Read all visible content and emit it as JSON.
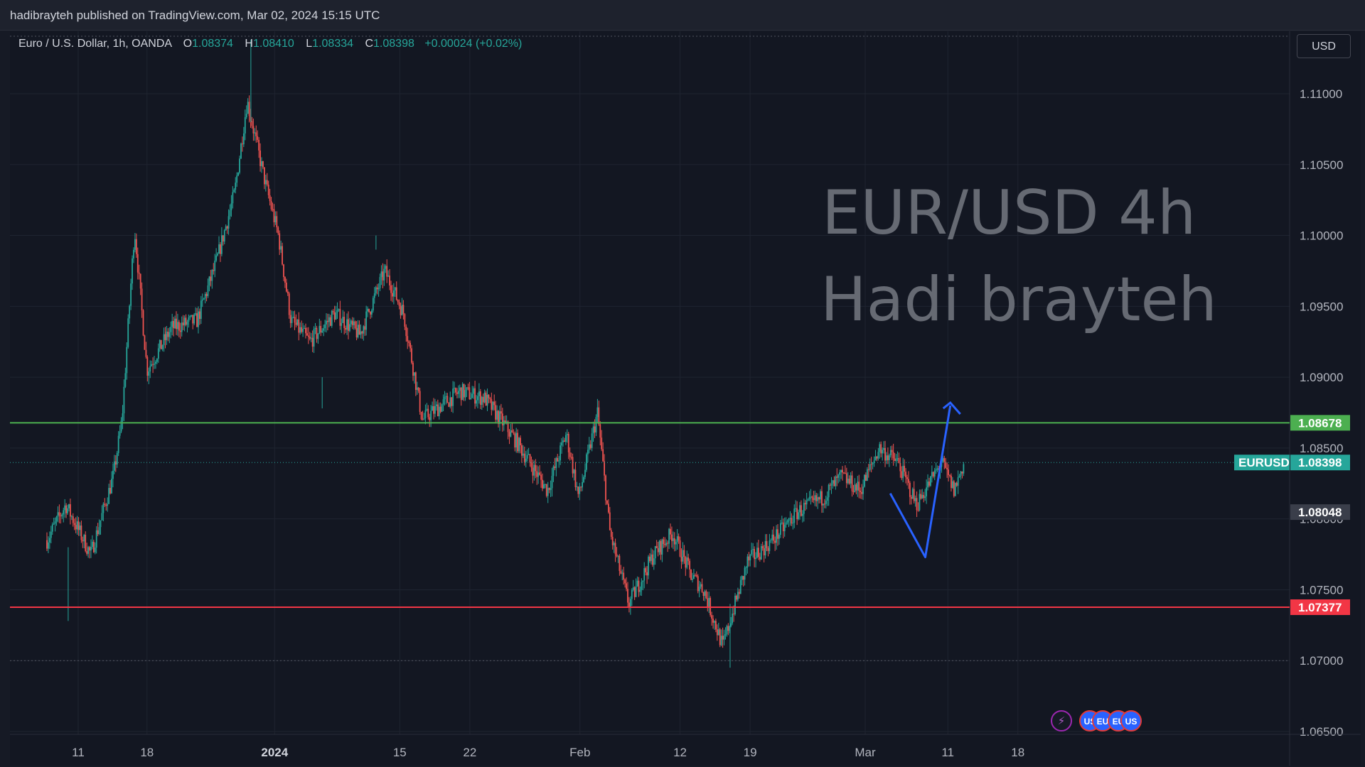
{
  "header": {
    "publish_line": "hadibrayteh published on TradingView.com, Mar 02, 2024 15:15 UTC"
  },
  "legend": {
    "symbol": "Euro / U.S. Dollar, 1h, OANDA",
    "o_label": "O",
    "o_value": "1.08374",
    "h_label": "H",
    "h_value": "1.08410",
    "l_label": "L",
    "l_value": "1.08334",
    "c_label": "C",
    "c_value": "1.08398",
    "change": "+0.00024 (+0.02%)"
  },
  "currency_button": "USD",
  "watermark": {
    "line1": "EUR/USD 4h",
    "line2": "Hadi brayteh"
  },
  "events": [
    {
      "icon": "lightning-icon",
      "glyph": "⚡"
    },
    {
      "icon": "us-flag-icon",
      "glyph": "US"
    },
    {
      "icon": "eu-flag-icon",
      "glyph": "EU"
    },
    {
      "icon": "eu-flag-icon",
      "glyph": "EU"
    },
    {
      "icon": "us-flag-icon",
      "glyph": "US"
    }
  ],
  "colors": {
    "background": "#131722",
    "up": "#26a69a",
    "down": "#ef5350",
    "resistance_line": "#4caf50",
    "support_line": "#f23645",
    "drawing": "#2962ff",
    "watermark": "#6b6f78"
  },
  "chart_data": {
    "type": "candlestick",
    "symbol": "EURUSD",
    "ylim": [
      1.0645,
      1.114
    ],
    "y_ticks": [
      "1.11000",
      "1.10500",
      "1.10000",
      "1.09500",
      "1.09000",
      "1.08500",
      "1.08000",
      "1.07500",
      "1.07000",
      "1.06500"
    ],
    "x_ticks": [
      {
        "label": "11",
        "bold": false
      },
      {
        "label": "18",
        "bold": false
      },
      {
        "label": "2024",
        "bold": true
      },
      {
        "label": "15",
        "bold": false
      },
      {
        "label": "22",
        "bold": false
      },
      {
        "label": "Feb",
        "bold": false
      },
      {
        "label": "12",
        "bold": false
      },
      {
        "label": "19",
        "bold": false
      },
      {
        "label": "Mar",
        "bold": false
      },
      {
        "label": "11",
        "bold": false
      },
      {
        "label": "18",
        "bold": false
      }
    ],
    "series_anchors": [
      [
        0,
        1.0785
      ],
      [
        1.5,
        1.081
      ],
      [
        3.5,
        1.0775
      ],
      [
        5.3,
        1.083
      ],
      [
        6.0,
        1.087
      ],
      [
        7.0,
        1.1005
      ],
      [
        8.0,
        1.0905
      ],
      [
        10.0,
        1.0935
      ],
      [
        12.0,
        1.094
      ],
      [
        13.5,
        1.098
      ],
      [
        15.0,
        1.103
      ],
      [
        16.0,
        1.1095
      ],
      [
        17.5,
        1.1035
      ],
      [
        18.5,
        1.1
      ],
      [
        19.5,
        1.094
      ],
      [
        21.0,
        1.0925
      ],
      [
        23.0,
        1.0945
      ],
      [
        25.0,
        1.093
      ],
      [
        27.0,
        1.0975
      ],
      [
        28.5,
        1.0945
      ],
      [
        30.0,
        1.087
      ],
      [
        33.0,
        1.089
      ],
      [
        35.0,
        1.0885
      ],
      [
        37.5,
        1.0855
      ],
      [
        40.0,
        1.082
      ],
      [
        41.5,
        1.086
      ],
      [
        42.5,
        1.0815
      ],
      [
        44.0,
        1.0875
      ],
      [
        45.0,
        1.079
      ],
      [
        46.5,
        1.074
      ],
      [
        48.5,
        1.0775
      ],
      [
        50.0,
        1.079
      ],
      [
        51.5,
        1.076
      ],
      [
        52.5,
        1.075
      ],
      [
        54.0,
        1.071
      ],
      [
        56.0,
        1.077
      ],
      [
        58.0,
        1.0785
      ],
      [
        60.0,
        1.0805
      ],
      [
        62.0,
        1.0815
      ],
      [
        63.5,
        1.083
      ],
      [
        65.0,
        1.082
      ],
      [
        66.5,
        1.085
      ],
      [
        68.0,
        1.084
      ],
      [
        69.5,
        1.081
      ],
      [
        71.5,
        1.084
      ],
      [
        72.5,
        1.082
      ],
      [
        73.3,
        1.084
      ]
    ],
    "extremes": {
      "high": 1.114,
      "low": 1.0695
    },
    "levels": [
      {
        "name": "resistance",
        "price": 1.08678,
        "label": "1.08678"
      },
      {
        "name": "support",
        "price": 1.07377,
        "label": "1.07377"
      }
    ],
    "last_price": {
      "symbol_label": "EURUSD",
      "price": 1.08398,
      "label": "1.08398"
    },
    "grey_tag": {
      "price": 1.08048,
      "label": "1.08048"
    },
    "dotted_lines": [
      1.07,
      1.1125
    ],
    "drawing_path_prices": [
      [
        67.4,
        1.0818
      ],
      [
        70.2,
        1.0773
      ],
      [
        72.2,
        1.088
      ]
    ]
  }
}
